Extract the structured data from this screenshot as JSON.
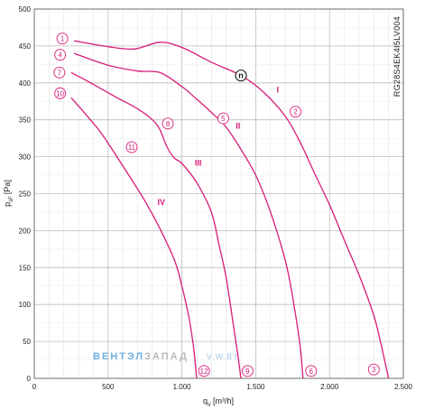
{
  "chart_data": {
    "type": "line",
    "xlabel": "q",
    "xlabel_sub": "V",
    "xlabel_unit": "[m³/h]",
    "ylabel": "p",
    "ylabel_sub": "sF",
    "ylabel_unit": "[Pa]",
    "xlim": [
      0,
      2500
    ],
    "ylim": [
      0,
      500
    ],
    "x_ticks": [
      {
        "value": 0,
        "label": "0"
      },
      {
        "value": 500,
        "label": "500"
      },
      {
        "value": 1000,
        "label": "1.000"
      },
      {
        "value": 1500,
        "label": "1.500"
      },
      {
        "value": 2000,
        "label": "2.000"
      },
      {
        "value": 2500,
        "label": "2.500"
      }
    ],
    "y_ticks": [
      0,
      50,
      100,
      150,
      200,
      250,
      300,
      350,
      400,
      450,
      500
    ],
    "grid": true,
    "model_code": "RG28S4EK4I5LV004",
    "color": "#d81b78",
    "series": [
      {
        "name": "I",
        "x": [
          270,
          500,
          680,
          850,
          1000,
          1200,
          1400,
          1550,
          1700,
          1800,
          1900,
          2000,
          2100,
          2200,
          2300,
          2350,
          2400
        ],
        "y": [
          457,
          449,
          446,
          455,
          448,
          428,
          410,
          388,
          355,
          320,
          277,
          235,
          187,
          140,
          85,
          45,
          0
        ]
      },
      {
        "name": "II",
        "x": [
          270,
          500,
          700,
          850,
          1000,
          1100,
          1200,
          1300,
          1400,
          1500,
          1600,
          1700,
          1750,
          1800,
          1820
        ],
        "y": [
          440,
          424,
          416,
          414,
          395,
          378,
          360,
          340,
          310,
          275,
          225,
          160,
          110,
          45,
          0
        ]
      },
      {
        "name": "III",
        "x": [
          250,
          400,
          550,
          700,
          800,
          850,
          900,
          950,
          1000,
          1100,
          1200,
          1250,
          1300,
          1350,
          1380,
          1400
        ],
        "y": [
          414,
          398,
          381,
          365,
          350,
          337,
          313,
          298,
          291,
          265,
          225,
          182,
          136,
          70,
          30,
          0
        ]
      },
      {
        "name": "IV",
        "x": [
          250,
          350,
          450,
          550,
          650,
          750,
          850,
          950,
          1000,
          1050,
          1080,
          1100
        ],
        "y": [
          380,
          357,
          333,
          303,
          272,
          240,
          203,
          160,
          125,
          80,
          40,
          0
        ]
      }
    ],
    "curve_labels": [
      {
        "text": "I",
        "x": 1650,
        "y": 387
      },
      {
        "text": "II",
        "x": 1380,
        "y": 338
      },
      {
        "text": "III",
        "x": 1110,
        "y": 288
      },
      {
        "text": "IV",
        "x": 860,
        "y": 235
      }
    ],
    "point_markers": [
      {
        "text": "1",
        "x": 190,
        "y": 460
      },
      {
        "text": "4",
        "x": 175,
        "y": 438
      },
      {
        "text": "7",
        "x": 170,
        "y": 414
      },
      {
        "text": "10",
        "x": 175,
        "y": 386
      },
      {
        "text": "2",
        "x": 1770,
        "y": 361
      },
      {
        "text": "5",
        "x": 1280,
        "y": 352
      },
      {
        "text": "8",
        "x": 905,
        "y": 345
      },
      {
        "text": "11",
        "x": 660,
        "y": 313
      },
      {
        "text": "3",
        "x": 2300,
        "y": 12
      },
      {
        "text": "6",
        "x": 1875,
        "y": 10
      },
      {
        "text": "9",
        "x": 1445,
        "y": 10
      },
      {
        "text": "12",
        "x": 1150,
        "y": 10
      }
    ],
    "operating_point": {
      "text": "n",
      "x": 1400,
      "y": 410
    }
  },
  "watermark": {
    "part_a": "ВЕНТЭЛ",
    "part_b": "ЗАПАД",
    "part_c": "V.W.BY"
  }
}
